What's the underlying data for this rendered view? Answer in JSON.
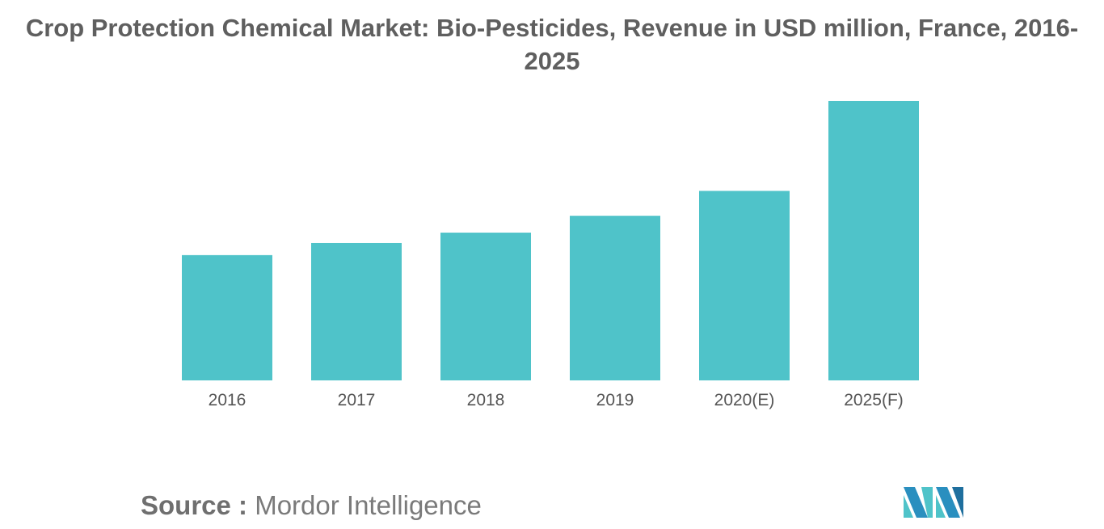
{
  "chart_data": {
    "type": "bar",
    "title": "Crop Protection Chemical Market: Bio-Pesticides, Revenue in USD million, France, 2016-2025",
    "categories": [
      "2016",
      "2017",
      "2018",
      "2019",
      "2020(E)",
      "2025(F)"
    ],
    "values": [
      156,
      171,
      184,
      205,
      236,
      348
    ],
    "ylim": [
      0,
      350
    ],
    "grid": false,
    "legend": "none",
    "bar_color": "#4fc3c9"
  },
  "source": {
    "label": "Source :",
    "value": "Mordor Intelligence"
  },
  "logo": {
    "icon": "mordor-intelligence-logo-icon",
    "colors": [
      "#2a8fbf",
      "#4fc3c9",
      "#1f6f9e"
    ]
  }
}
